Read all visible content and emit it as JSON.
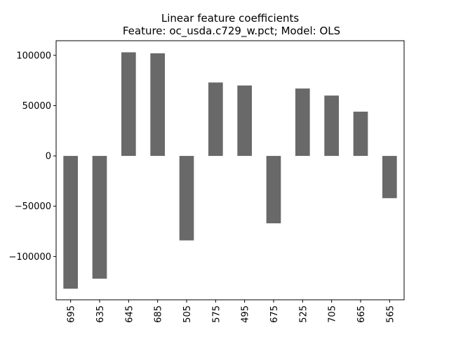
{
  "chart_data": {
    "type": "bar",
    "title": "Linear feature coefficients",
    "subtitle": "Feature: oc_usda.c729_w.pct; Model: OLS",
    "xlabel": "",
    "ylabel": "",
    "categories": [
      "695",
      "635",
      "645",
      "685",
      "505",
      "575",
      "495",
      "675",
      "525",
      "705",
      "665",
      "565"
    ],
    "values": [
      -132000,
      -122000,
      103000,
      102000,
      -84000,
      73000,
      70000,
      -67000,
      67000,
      60000,
      44000,
      -42000
    ],
    "ylim": [
      -143000,
      114500
    ],
    "yticks": [
      -100000,
      -50000,
      0,
      50000,
      100000
    ],
    "ytick_labels": [
      "−100000",
      "−50000",
      "0",
      "50000",
      "100000"
    ],
    "bar_color": "#696969",
    "grid": false,
    "legend": "none"
  }
}
